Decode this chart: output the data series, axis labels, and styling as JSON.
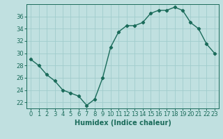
{
  "x": [
    0,
    1,
    2,
    3,
    4,
    5,
    6,
    7,
    8,
    9,
    10,
    11,
    12,
    13,
    14,
    15,
    16,
    17,
    18,
    19,
    20,
    21,
    22,
    23
  ],
  "y": [
    29,
    28,
    26.5,
    25.5,
    24,
    23.5,
    23,
    21.5,
    22.5,
    26,
    31,
    33.5,
    34.5,
    34.5,
    35,
    36.5,
    37,
    37,
    37.5,
    37,
    35,
    34,
    31.5,
    30
  ],
  "line_color": "#1a6b5a",
  "marker": "D",
  "marker_size": 2.2,
  "bg_color": "#c0e0e0",
  "grid_color": "#a0cccc",
  "xlabel": "Humidex (Indice chaleur)",
  "ylim": [
    21,
    38
  ],
  "yticks": [
    22,
    24,
    26,
    28,
    30,
    32,
    34,
    36
  ],
  "xlim": [
    -0.5,
    23.5
  ],
  "xticks": [
    0,
    1,
    2,
    3,
    4,
    5,
    6,
    7,
    8,
    9,
    10,
    11,
    12,
    13,
    14,
    15,
    16,
    17,
    18,
    19,
    20,
    21,
    22,
    23
  ],
  "xlabel_fontsize": 7,
  "tick_fontsize": 6,
  "line_width": 1.0
}
